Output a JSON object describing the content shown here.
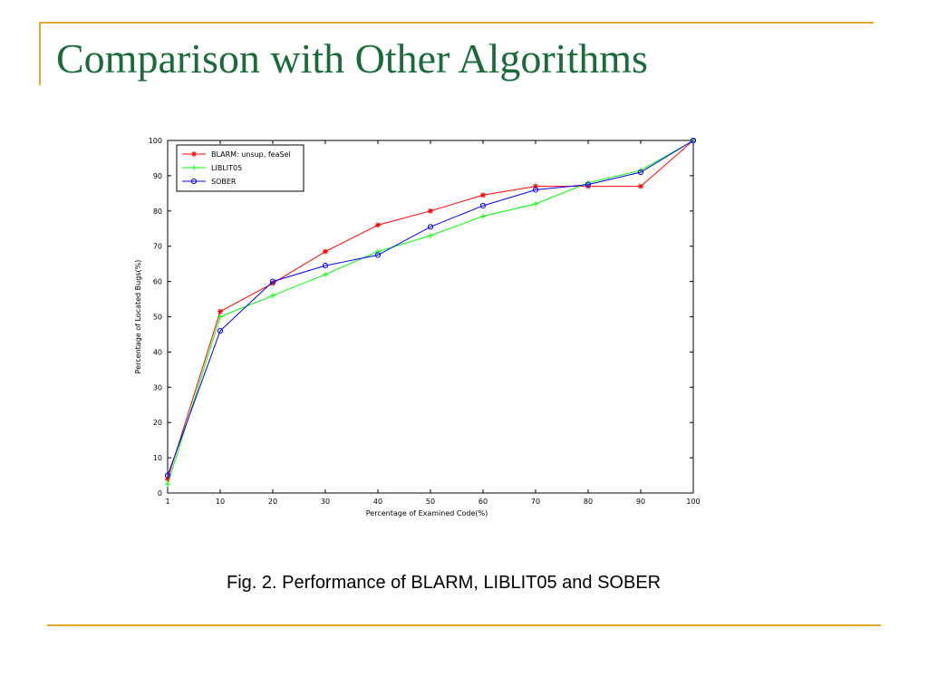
{
  "slide": {
    "title": "Comparison with Other Algorithms",
    "caption": "Fig. 2. Performance of BLARM, LIBLIT05 and SOBER",
    "accent_color": "#e3a82b",
    "title_color": "#1b6b3a"
  },
  "chart_data": {
    "type": "line",
    "title": "",
    "xlabel": "Percentage of Examined Code(%)",
    "ylabel": "Percentage of Located Bugs(%)",
    "x_tick_labels": [
      "1",
      "10",
      "20",
      "30",
      "40",
      "50",
      "60",
      "70",
      "80",
      "90",
      "100"
    ],
    "y_ticks": [
      0,
      10,
      20,
      30,
      40,
      50,
      60,
      70,
      80,
      90,
      100
    ],
    "ylim": [
      0,
      100
    ],
    "grid": false,
    "legend_position": "top-left",
    "series": [
      {
        "name": "BLARM: unsup, feaSel",
        "color": "#ff0000",
        "marker": "star",
        "values": [
          4,
          51.5,
          59.5,
          68.5,
          76,
          80,
          84.5,
          87,
          87,
          87,
          100
        ]
      },
      {
        "name": "LIBLIT05",
        "color": "#00ff00",
        "marker": "plus",
        "values": [
          2.5,
          50,
          56,
          62,
          68.5,
          73,
          78.5,
          82,
          88,
          91.5,
          100
        ]
      },
      {
        "name": "SOBER",
        "color": "#0000ff",
        "marker": "circle",
        "values": [
          5,
          46,
          60,
          64.5,
          67.5,
          75.5,
          81.5,
          86,
          87.5,
          91,
          100
        ]
      }
    ]
  }
}
